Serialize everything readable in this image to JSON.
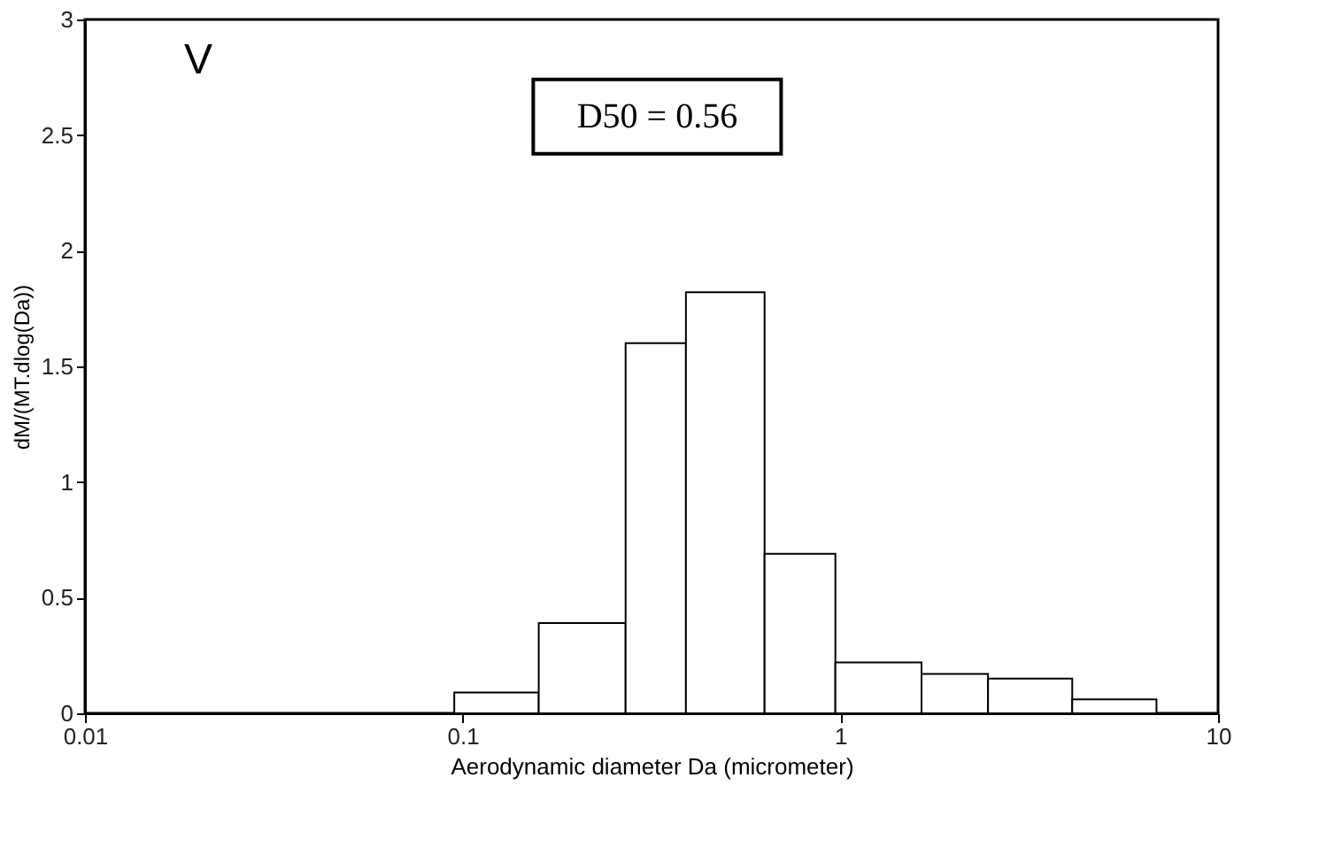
{
  "chart_data": {
    "type": "histogram",
    "xlabel": "Aerodynamic diameter Da (micrometer)",
    "ylabel": "dM/(MT.dlog(Da))",
    "bins": [
      0.095,
      0.159,
      0.27,
      0.39,
      0.63,
      0.97,
      1.64,
      2.46,
      4.11,
      6.87
    ],
    "values": [
      0.09,
      0.39,
      1.6,
      1.82,
      0.69,
      0.22,
      0.17,
      0.15,
      0.06
    ],
    "color": "#ffffff",
    "log": "x",
    "xlim": [
      0.01,
      10
    ],
    "xticks": [
      0.01,
      0.1,
      1,
      10
    ],
    "ylim": [
      0,
      3
    ],
    "yticks": [
      0,
      0.5,
      1,
      1.5,
      2,
      2.5,
      3
    ],
    "grid": false,
    "annotations": [
      "V",
      "D50 = 0.56"
    ]
  }
}
